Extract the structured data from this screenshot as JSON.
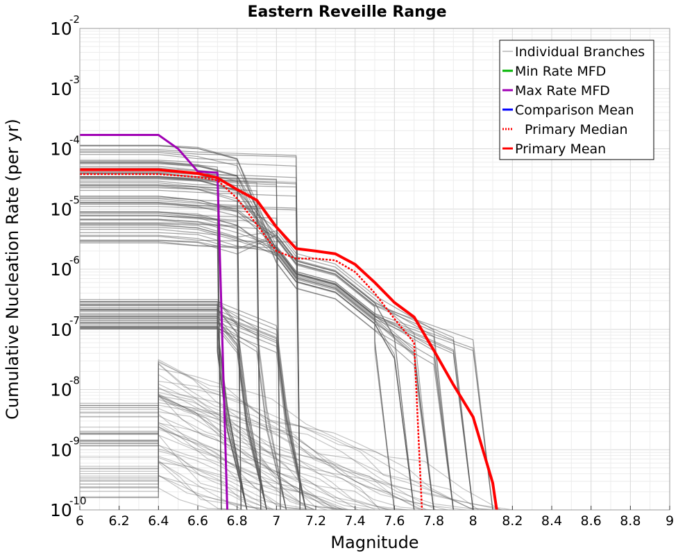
{
  "chart_data": {
    "type": "line",
    "title": "Eastern Reveille Range",
    "xlabel": "Magnitude",
    "ylabel": "Cumulative Nucleation Rate (per yr)",
    "xlim": [
      6,
      9
    ],
    "ylim": [
      1e-10,
      0.01
    ],
    "yscale": "log",
    "grid": true,
    "x_ticks": [
      "6",
      "6.2",
      "6.4",
      "6.6",
      "6.8",
      "7",
      "7.2",
      "7.4",
      "7.6",
      "7.8",
      "8",
      "8.2",
      "8.4",
      "8.6",
      "8.8",
      "9"
    ],
    "y_ticks": [
      {
        "base": "10",
        "exp": "-10"
      },
      {
        "base": "10",
        "exp": "-9"
      },
      {
        "base": "10",
        "exp": "-8"
      },
      {
        "base": "10",
        "exp": "-7"
      },
      {
        "base": "10",
        "exp": "-6"
      },
      {
        "base": "10",
        "exp": "-5"
      },
      {
        "base": "10",
        "exp": "-4"
      },
      {
        "base": "10",
        "exp": "-3"
      },
      {
        "base": "10",
        "exp": "-2"
      }
    ],
    "legend_position": "top-right",
    "legend": [
      {
        "name": "Individual Branches",
        "color": "#b4b4b4",
        "style": "solid"
      },
      {
        "name": "Min Rate MFD",
        "color": "#00b400",
        "style": "solid"
      },
      {
        "name": "Max Rate MFD",
        "color": "#a000b4",
        "style": "solid"
      },
      {
        "name": "Comparison Mean",
        "color": "#0000ff",
        "style": "solid"
      },
      {
        "name": "Primary Median",
        "color": "#ff0000",
        "style": "dotted"
      },
      {
        "name": "Primary Mean",
        "color": "#ff0000",
        "style": "solid"
      }
    ],
    "series": [
      {
        "name": "Max Rate MFD",
        "color": "#a000b4",
        "x": [
          6.0,
          6.1,
          6.2,
          6.3,
          6.4,
          6.5,
          6.6,
          6.7,
          6.75
        ],
        "y": [
          0.00017,
          0.00017,
          0.00017,
          0.00017,
          0.00017,
          0.0001,
          4.2e-05,
          4e-05,
          1e-10
        ]
      },
      {
        "name": "Primary Median",
        "color": "#ff0000",
        "x": [
          6.0,
          6.4,
          6.6,
          6.7,
          6.8,
          6.9,
          7.0,
          7.1,
          7.2,
          7.3,
          7.4,
          7.5,
          7.6,
          7.7,
          7.74
        ],
        "y": [
          3.8e-05,
          3.8e-05,
          3.4e-05,
          3e-05,
          1.5e-05,
          5.5e-06,
          2e-06,
          1.5e-06,
          1.5e-06,
          1.4e-06,
          9e-07,
          4e-07,
          1.5e-07,
          6e-08,
          1e-10
        ]
      },
      {
        "name": "Primary Mean",
        "color": "#ff0000",
        "x": [
          6.0,
          6.4,
          6.6,
          6.7,
          6.8,
          6.9,
          7.0,
          7.1,
          7.2,
          7.3,
          7.4,
          7.5,
          7.6,
          7.7,
          7.8,
          7.9,
          8.0,
          8.1,
          8.12
        ],
        "y": [
          4.5e-05,
          4.5e-05,
          3.9e-05,
          3.3e-05,
          2.1e-05,
          1.4e-05,
          5e-06,
          2.2e-06,
          2e-06,
          1.8e-06,
          1.2e-06,
          6e-07,
          2.8e-07,
          1.6e-07,
          4.5e-08,
          1.2e-08,
          3.5e-09,
          2.8e-10,
          1e-10
        ]
      }
    ],
    "branch_bundles": [
      {
        "group": "upper",
        "count": 70,
        "rate_log10_range": [
          -5.6,
          -3.9
        ],
        "drop_magnitudes": [
          6.7,
          6.8,
          6.9,
          7.0,
          7.1
        ],
        "tail": "plateau then drop to 1e-6 region"
      },
      {
        "group": "mid",
        "count": 35,
        "rate_log10_range": [
          -7.0,
          -6.5
        ],
        "drop_magnitudes": [
          6.7,
          6.8,
          6.9,
          7.0
        ],
        "tail": "steep decline"
      },
      {
        "group": "lower",
        "count": 50,
        "rate_log10_range": [
          -9.8,
          -8.2
        ],
        "drop_magnitudes": [
          6.4
        ],
        "tail": "noisy decline to 1e-10"
      }
    ]
  }
}
